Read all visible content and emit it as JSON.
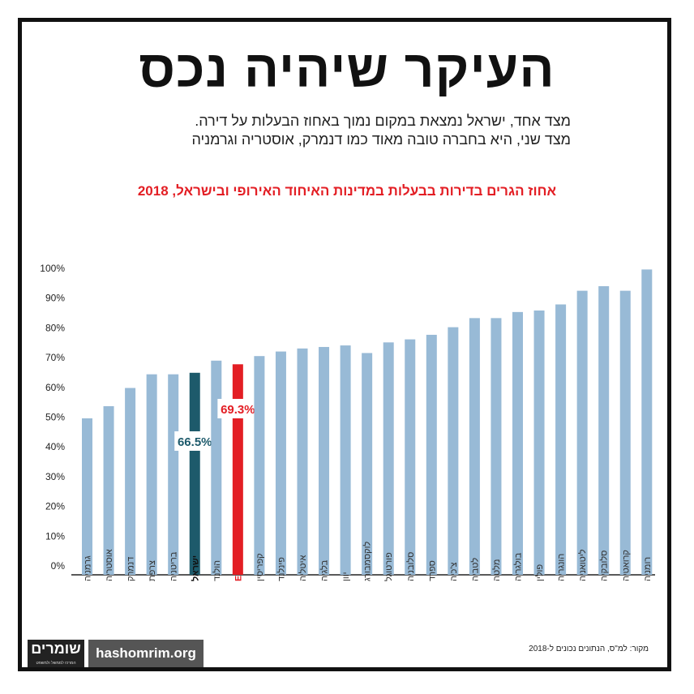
{
  "title": "העיקר שיהיה נכס",
  "subtitle_lines": [
    "מצד אחד, ישראל נמצאת במקום נמוך באחוז הבעלות על דירה.",
    "מצד שני, היא בחברה טובה מאוד כמו דנמרק, אוסטריה וגרמניה"
  ],
  "footer": {
    "logo_text": "שומרים",
    "logo_subtext": "המרכז לממשל ולמשפט",
    "site": "hashomrim.org",
    "source": "מקור: למ\"ס, הנתונים נכונים ל-2018"
  },
  "colors": {
    "bar": "#98bad6",
    "israel": "#1d5a6b",
    "eu_average": "#e31e24",
    "axis": "#222222"
  },
  "chart_data": {
    "type": "bar",
    "title": "אחוז הגרים בדירות בבעלות במדינות האיחוד האירופי ובישראל, 2018",
    "categories": [
      "גרמניה",
      "אוסטריה",
      "דנמרק",
      "צרפת",
      "בריטניה",
      "ישראל",
      "הולנד",
      "ממוצע EU",
      "קפריסין",
      "פינלנד",
      "איטליה",
      "בלגיה",
      "יוון",
      "לוקסמבורג",
      "פורטוגל",
      "סלובניה",
      "ספרד",
      "צ'כיה",
      "לטביה",
      "מלטה",
      "בולגריה",
      "פולין",
      "הונגריה",
      "ליטואניה",
      "סלובקיה",
      "קרואטיה",
      "רומניה"
    ],
    "values": [
      51.5,
      55.5,
      61.5,
      66,
      66,
      66.5,
      70.5,
      69.3,
      72,
      73.5,
      74.5,
      75,
      75.5,
      73,
      76.5,
      77.5,
      79,
      81.5,
      84.5,
      84.5,
      86.5,
      87,
      89,
      93.5,
      95,
      93.5,
      100.5
    ],
    "highlight": {
      "ישראל": "66.5%",
      "ממוצע EU": "69.3%"
    },
    "y_ticks": [
      "0%",
      "10%",
      "20%",
      "30%",
      "40%",
      "50%",
      "60%",
      "70%",
      "80%",
      "90%",
      "100%"
    ],
    "ylim": [
      0,
      100
    ],
    "grid": false
  }
}
